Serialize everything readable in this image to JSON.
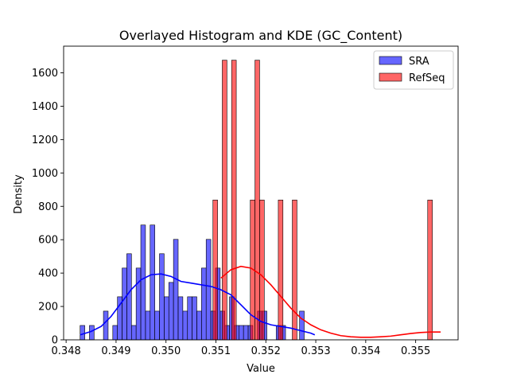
{
  "chart_data": {
    "type": "bar",
    "title": "Overlayed Histogram and KDE (GC_Content)",
    "xlabel": "Value",
    "ylabel": "Density",
    "xlim": [
      0.34795,
      0.35585
    ],
    "ylim": [
      0,
      1760
    ],
    "xticks": [
      0.348,
      0.349,
      0.35,
      0.351,
      0.352,
      0.353,
      0.354,
      0.355
    ],
    "xtick_labels": [
      "0.348",
      "0.349",
      "0.350",
      "0.351",
      "0.352",
      "0.353",
      "0.354",
      "0.355"
    ],
    "yticks": [
      0,
      200,
      400,
      600,
      800,
      1000,
      1200,
      1400,
      1600
    ],
    "ytick_labels": [
      "0",
      "200",
      "400",
      "600",
      "800",
      "1000",
      "1200",
      "1400",
      "1600"
    ],
    "grid": false,
    "legend_position": "top-right",
    "series": [
      {
        "name": "SRA",
        "color": "#0000ff",
        "bins": {
          "start": 0.34828,
          "width": 9.35e-05,
          "values": [
            86,
            0,
            86,
            0,
            0,
            172,
            0,
            86,
            258,
            430,
            516,
            86,
            430,
            688,
            172,
            688,
            172,
            516,
            258,
            344,
            602,
            258,
            172,
            258,
            258,
            172,
            430,
            602,
            172,
            430,
            172,
            86,
            258,
            86,
            86,
            86,
            86,
            0,
            172,
            172,
            0,
            0,
            86,
            86,
            0,
            0,
            0,
            172
          ]
        },
        "kde": {
          "x": [
            0.34828,
            0.3485,
            0.3487,
            0.3489,
            0.3491,
            0.3493,
            0.3495,
            0.3497,
            0.3499,
            0.3501,
            0.3503,
            0.3505,
            0.3507,
            0.3509,
            0.3511,
            0.3513,
            0.3515,
            0.3517,
            0.3519,
            0.3521,
            0.3523,
            0.3525,
            0.3527,
            0.3529,
            0.35298
          ],
          "y": [
            30,
            50,
            80,
            140,
            220,
            300,
            360,
            390,
            395,
            380,
            350,
            340,
            330,
            320,
            300,
            270,
            210,
            150,
            110,
            90,
            80,
            70,
            55,
            40,
            30
          ]
        }
      },
      {
        "name": "RefSeq",
        "color": "#ff0000",
        "bins": {
          "start": 0.35094,
          "width": 9.35e-05,
          "values": [
            838,
            0,
            1676,
            0,
            1676,
            0,
            0,
            0,
            838,
            1676,
            838,
            0,
            0,
            0,
            838,
            0,
            0,
            838,
            0,
            0,
            0,
            0,
            0,
            0,
            0,
            0,
            0,
            0,
            0,
            0,
            0,
            0,
            0,
            0,
            0,
            0,
            0,
            0,
            0,
            0,
            0,
            0,
            0,
            0,
            0,
            0,
            838
          ]
        },
        "kde": {
          "x": [
            0.3511,
            0.3513,
            0.3515,
            0.3517,
            0.3519,
            0.3521,
            0.3523,
            0.3525,
            0.3527,
            0.3529,
            0.3531,
            0.3533,
            0.3535,
            0.3537,
            0.3539,
            0.3541,
            0.3543,
            0.3545,
            0.3547,
            0.3549,
            0.3551,
            0.3553,
            0.3555
          ],
          "y": [
            370,
            420,
            440,
            430,
            390,
            330,
            260,
            190,
            130,
            90,
            60,
            40,
            25,
            18,
            15,
            15,
            18,
            22,
            30,
            38,
            44,
            47,
            47
          ]
        }
      }
    ]
  }
}
